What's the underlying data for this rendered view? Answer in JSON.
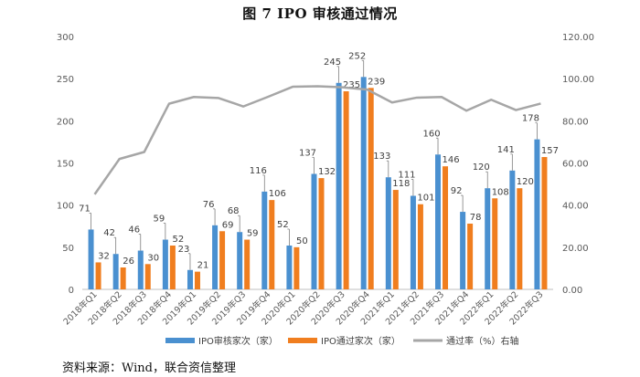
{
  "figure": {
    "title": "图 7   IPO 审核通过情况",
    "source": "资料来源：Wind，联合资信整理"
  },
  "colors": {
    "submitted": "#4a90d0",
    "approved": "#f07e1f",
    "rate": "#a6a6a6",
    "axis_text": "#595959",
    "label_text": "#404040"
  },
  "chart_data": {
    "type": "bar+line",
    "title": "IPO 审核通过情况",
    "categories": [
      "2018年Q1",
      "2018年Q2",
      "2018年Q3",
      "2018年Q4",
      "2019年Q1",
      "2019年Q2",
      "2019年Q3",
      "2019年Q4",
      "2020年Q1",
      "2020年Q2",
      "2020年Q3",
      "2020年Q4",
      "2021年Q1",
      "2021年Q2",
      "2021年Q3",
      "2021年Q4",
      "2022年Q1",
      "2022年Q2",
      "2022年Q3"
    ],
    "series": [
      {
        "name": "IPO审核家次（家）",
        "type": "bar",
        "axis": "left",
        "values": [
          71,
          42,
          46,
          59,
          23,
          76,
          68,
          116,
          52,
          137,
          245,
          252,
          133,
          111,
          160,
          92,
          120,
          141,
          178
        ]
      },
      {
        "name": "IPO通过家次（家）",
        "type": "bar",
        "axis": "left",
        "values": [
          32,
          26,
          30,
          52,
          21,
          69,
          59,
          106,
          50,
          132,
          235,
          239,
          118,
          101,
          146,
          78,
          108,
          120,
          157
        ]
      },
      {
        "name": "通过率（%）右轴",
        "type": "line",
        "axis": "right",
        "values": [
          45.1,
          61.9,
          65.2,
          88.1,
          91.3,
          90.8,
          86.8,
          91.4,
          96.2,
          96.4,
          95.9,
          94.8,
          88.7,
          91.0,
          91.3,
          84.8,
          90.0,
          85.1,
          88.2
        ]
      }
    ],
    "y_left": {
      "min": 0,
      "max": 300,
      "ticks": [
        "0",
        "50",
        "100",
        "150",
        "200",
        "250",
        "300"
      ]
    },
    "y_right": {
      "min": 0,
      "max": 120,
      "ticks": [
        "0.00",
        "20.00",
        "40.00",
        "60.00",
        "80.00",
        "100.00",
        "120.00"
      ]
    },
    "legend_position": "bottom",
    "gridlines": false
  }
}
